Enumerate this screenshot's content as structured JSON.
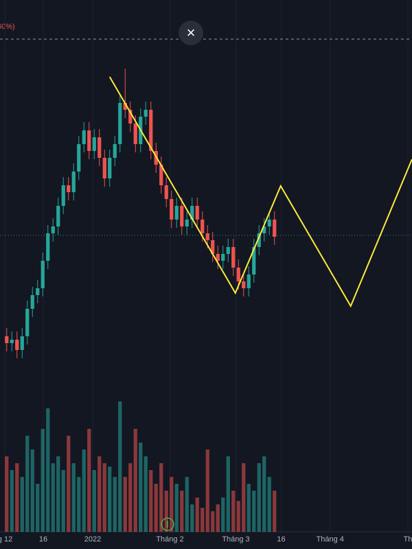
{
  "close_button": "×",
  "chart_data": {
    "type": "candlestick",
    "price_label": "60%)",
    "xlim": [
      -1.3,
      78.7
    ],
    "xticks": [
      {
        "value": -0.3,
        "label": "g 12"
      },
      {
        "value": 7.1,
        "label": "16"
      },
      {
        "value": 16.7,
        "label": "2022"
      },
      {
        "value": 31.7,
        "label": "Tháng 2"
      },
      {
        "value": 44.5,
        "label": "Tháng 3"
      },
      {
        "value": 53.3,
        "label": "16"
      },
      {
        "value": 62.8,
        "label": "Tháng 4"
      },
      {
        "value": 77.9,
        "label": "Th"
      }
    ],
    "ylim": [
      200,
      800
    ],
    "up_color": "#26a69a",
    "down_color": "#ef5350",
    "open": [
      310,
      300,
      305,
      290,
      310,
      350,
      370,
      380,
      420,
      460,
      470,
      500,
      530,
      520,
      550,
      590,
      610,
      580,
      600,
      570,
      540,
      570,
      590,
      650,
      640,
      620,
      590,
      630,
      640,
      580,
      560,
      530,
      510,
      480,
      500,
      470,
      480,
      500,
      480,
      460,
      450,
      430,
      420,
      430,
      440,
      410,
      390,
      380,
      400,
      440,
      460,
      470,
      480
    ],
    "high": [
      322,
      317,
      317,
      322,
      362,
      382,
      392,
      432,
      472,
      482,
      512,
      542,
      542,
      562,
      602,
      622,
      622,
      612,
      612,
      582,
      582,
      602,
      662,
      700,
      652,
      632,
      642,
      652,
      652,
      592,
      572,
      542,
      522,
      512,
      512,
      492,
      512,
      512,
      492,
      472,
      462,
      442,
      442,
      452,
      452,
      422,
      402,
      412,
      452,
      472,
      482,
      492,
      492
    ],
    "low": [
      288,
      288,
      278,
      278,
      298,
      338,
      358,
      368,
      408,
      448,
      458,
      488,
      508,
      508,
      538,
      578,
      568,
      568,
      558,
      528,
      528,
      558,
      578,
      628,
      608,
      578,
      578,
      618,
      568,
      548,
      518,
      498,
      468,
      468,
      458,
      458,
      468,
      468,
      448,
      438,
      418,
      408,
      408,
      418,
      398,
      378,
      368,
      368,
      388,
      428,
      448,
      458,
      443
    ],
    "close": [
      300,
      305,
      290,
      310,
      350,
      370,
      380,
      420,
      460,
      470,
      500,
      530,
      520,
      550,
      590,
      610,
      580,
      600,
      570,
      540,
      570,
      590,
      650,
      640,
      620,
      590,
      630,
      640,
      580,
      560,
      530,
      510,
      480,
      500,
      470,
      480,
      500,
      480,
      460,
      450,
      430,
      420,
      430,
      440,
      410,
      390,
      380,
      400,
      440,
      460,
      470,
      480,
      455
    ],
    "volume": [
      110,
      90,
      100,
      80,
      140,
      120,
      70,
      150,
      180,
      100,
      110,
      90,
      140,
      100,
      80,
      120,
      150,
      90,
      110,
      100,
      95,
      80,
      190,
      80,
      100,
      150,
      130,
      110,
      90,
      70,
      100,
      60,
      80,
      70,
      60,
      80,
      40,
      50,
      35,
      120,
      30,
      40,
      50,
      110,
      60,
      45,
      100,
      70,
      60,
      100,
      110,
      80,
      60
    ],
    "volume_ylim": [
      0,
      200
    ],
    "hlines": [
      {
        "value": 743,
        "color": "#9598a1",
        "dash": "4 4"
      },
      {
        "value": 457,
        "color": "#2a8f8f",
        "dash": "1 3"
      }
    ],
    "zigzag": {
      "color": "#ffeb3b",
      "x": [
        20,
        44.4,
        53.2,
        66.8,
        78.7
      ],
      "values": [
        688,
        373,
        529,
        354,
        568
      ]
    }
  }
}
